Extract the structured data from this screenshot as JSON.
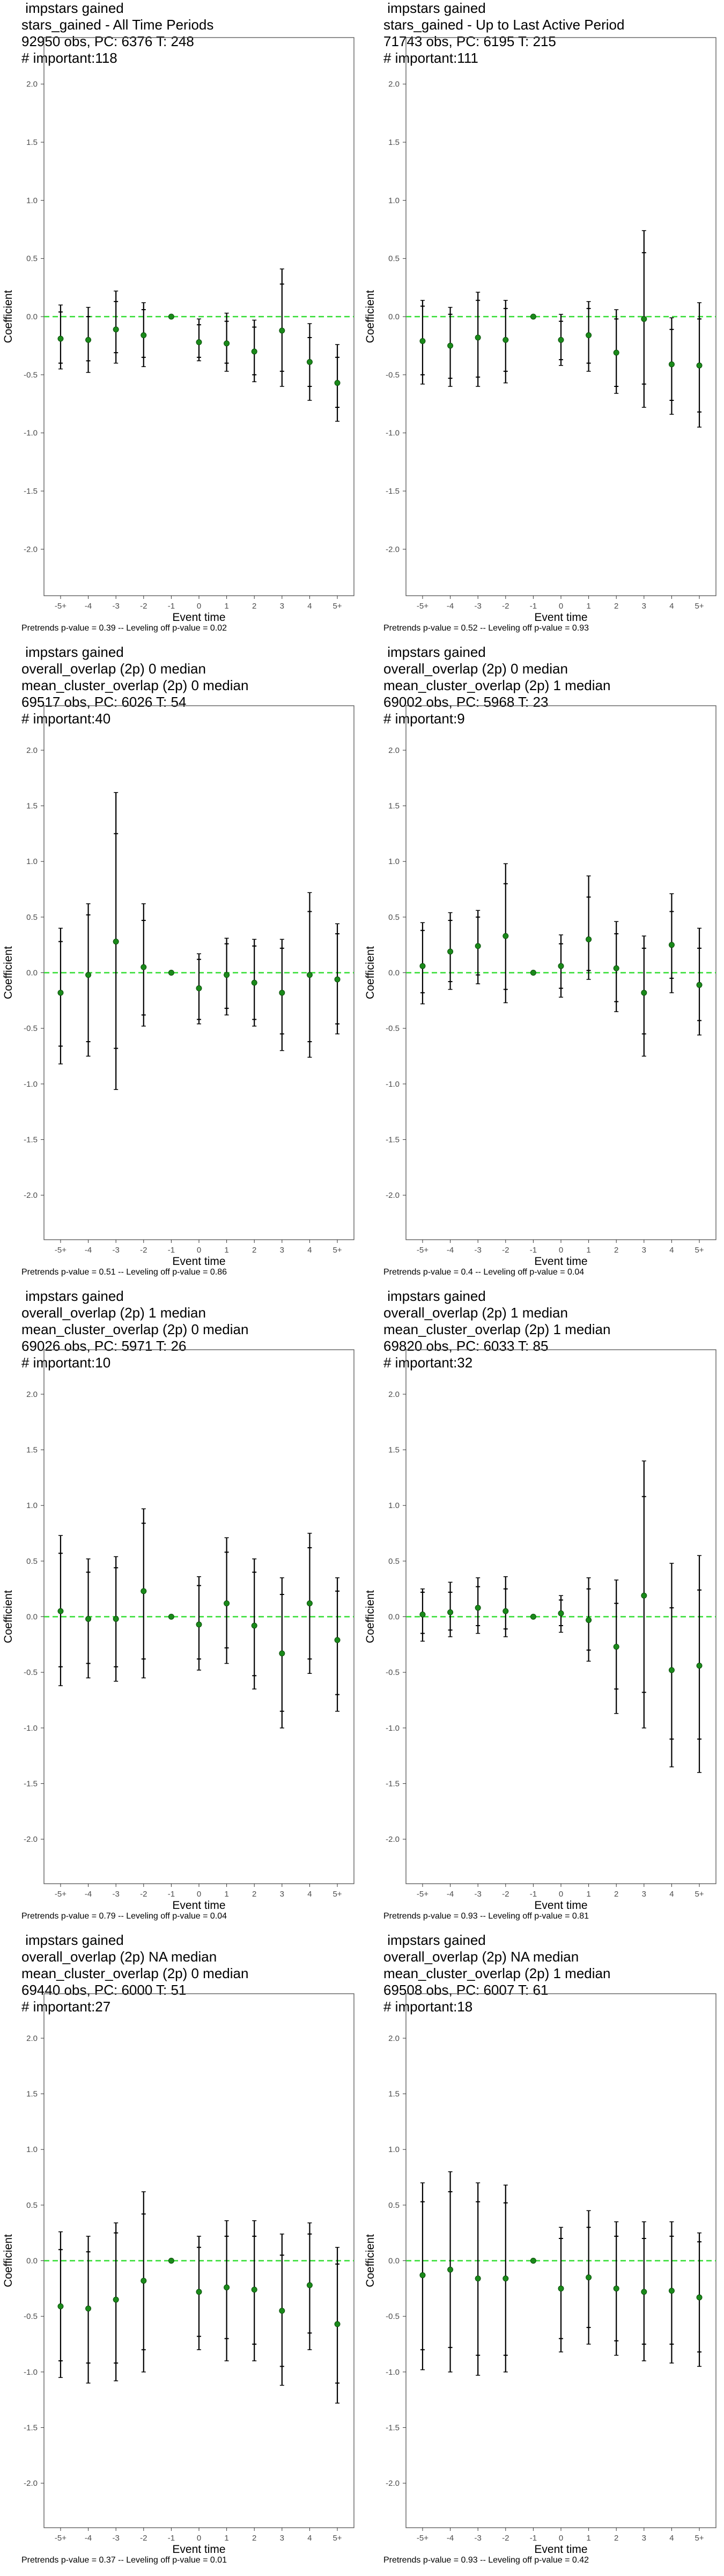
{
  "colors": {
    "point": "#1a8a1a",
    "zero_line": "#33dd33",
    "error_bar": "#000000",
    "frame": "#555555"
  },
  "chart_data": [
    {
      "type": "scatter",
      "title_lines": [
        " impstars gained",
        "stars_gained - All Time Periods",
        "92950 obs, PC: 6376 T: 248",
        "# important:118"
      ],
      "footer": "Pretrends p-value = 0.39 -- Leveling off p-value = 0.02",
      "xlabel": "Event time",
      "ylabel": "Coefficient",
      "categories": [
        "-5+",
        "-4",
        "-3",
        "-2",
        "-1",
        "0",
        "1",
        "2",
        "3",
        "4",
        "5+"
      ],
      "yticks": [
        "2.0",
        "1.5",
        "1.0",
        "0.5",
        "0.0",
        "-0.5",
        "-1.0",
        "-1.5",
        "-2.0"
      ],
      "ylim": [
        -2.4,
        2.4
      ],
      "values": [
        -0.19,
        -0.2,
        -0.11,
        -0.16,
        0.0,
        -0.22,
        -0.23,
        -0.3,
        -0.12,
        -0.39,
        -0.57
      ],
      "ci_inner": [
        [
          -0.4,
          0.04
        ],
        [
          -0.38,
          0.0
        ],
        [
          -0.31,
          0.13
        ],
        [
          -0.35,
          0.06
        ],
        null,
        [
          -0.35,
          -0.07
        ],
        [
          -0.4,
          -0.04
        ],
        [
          -0.5,
          -0.09
        ],
        [
          -0.47,
          0.28
        ],
        [
          -0.6,
          -0.18
        ],
        [
          -0.78,
          -0.35
        ]
      ],
      "ci_outer": [
        [
          -0.45,
          0.1
        ],
        [
          -0.48,
          0.08
        ],
        [
          -0.4,
          0.22
        ],
        [
          -0.43,
          0.12
        ],
        null,
        [
          -0.38,
          -0.02
        ],
        [
          -0.47,
          0.03
        ],
        [
          -0.56,
          -0.03
        ],
        [
          -0.6,
          0.41
        ],
        [
          -0.72,
          -0.06
        ],
        [
          -0.9,
          -0.24
        ]
      ]
    },
    {
      "type": "scatter",
      "title_lines": [
        " impstars gained",
        "stars_gained - Up to Last Active Period",
        "71743 obs, PC: 6195 T: 215",
        "# important:111"
      ],
      "footer": "Pretrends p-value = 0.52 -- Leveling off p-value = 0.93",
      "xlabel": "Event time",
      "ylabel": "Coefficient",
      "categories": [
        "-5+",
        "-4",
        "-3",
        "-2",
        "-1",
        "0",
        "1",
        "2",
        "3",
        "4",
        "5+"
      ],
      "yticks": [
        "2.0",
        "1.5",
        "1.0",
        "0.5",
        "0.0",
        "-0.5",
        "-1.0",
        "-1.5",
        "-2.0"
      ],
      "ylim": [
        -2.4,
        2.4
      ],
      "values": [
        -0.21,
        -0.25,
        -0.18,
        -0.2,
        0.0,
        -0.2,
        -0.16,
        -0.31,
        -0.02,
        -0.41,
        -0.42
      ],
      "ci_inner": [
        [
          -0.5,
          0.09
        ],
        [
          -0.53,
          0.02
        ],
        [
          -0.52,
          0.14
        ],
        [
          -0.47,
          0.07
        ],
        null,
        [
          -0.37,
          -0.04
        ],
        [
          -0.4,
          0.07
        ],
        [
          -0.6,
          -0.02
        ],
        [
          -0.58,
          0.55
        ],
        [
          -0.72,
          -0.11
        ],
        [
          -0.82,
          -0.02
        ]
      ],
      "ci_outer": [
        [
          -0.58,
          0.14
        ],
        [
          -0.6,
          0.08
        ],
        [
          -0.6,
          0.21
        ],
        [
          -0.57,
          0.14
        ],
        null,
        [
          -0.42,
          0.02
        ],
        [
          -0.47,
          0.13
        ],
        [
          -0.66,
          0.06
        ],
        [
          -0.78,
          0.74
        ],
        [
          -0.84,
          -0.01
        ],
        [
          -0.95,
          0.12
        ]
      ]
    },
    {
      "type": "scatter",
      "title_lines": [
        " impstars gained",
        "overall_overlap (2p) 0 median",
        "mean_cluster_overlap (2p) 0 median",
        "69517 obs, PC: 6026 T: 54",
        "# important:40"
      ],
      "footer": "Pretrends p-value = 0.51 -- Leveling off p-value = 0.86",
      "xlabel": "Event time",
      "ylabel": "Coefficient",
      "categories": [
        "-5+",
        "-4",
        "-3",
        "-2",
        "-1",
        "0",
        "1",
        "2",
        "3",
        "4",
        "5+"
      ],
      "yticks": [
        "2.0",
        "1.5",
        "1.0",
        "0.5",
        "0.0",
        "-0.5",
        "-1.0",
        "-1.5",
        "-2.0"
      ],
      "ylim": [
        -2.4,
        2.4
      ],
      "values": [
        -0.18,
        -0.02,
        0.28,
        0.05,
        0.0,
        -0.14,
        -0.02,
        -0.09,
        -0.18,
        -0.02,
        -0.06
      ],
      "ci_inner": [
        [
          -0.66,
          0.28
        ],
        [
          -0.62,
          0.52
        ],
        [
          -0.68,
          1.25
        ],
        [
          -0.38,
          0.47
        ],
        null,
        [
          -0.42,
          0.12
        ],
        [
          -0.32,
          0.26
        ],
        [
          -0.42,
          0.24
        ],
        [
          -0.55,
          0.22
        ],
        [
          -0.62,
          0.55
        ],
        [
          -0.46,
          0.35
        ]
      ],
      "ci_outer": [
        [
          -0.82,
          0.4
        ],
        [
          -0.75,
          0.62
        ],
        [
          -1.05,
          1.62
        ],
        [
          -0.48,
          0.62
        ],
        null,
        [
          -0.46,
          0.17
        ],
        [
          -0.38,
          0.31
        ],
        [
          -0.48,
          0.3
        ],
        [
          -0.7,
          0.3
        ],
        [
          -0.76,
          0.72
        ],
        [
          -0.55,
          0.44
        ]
      ]
    },
    {
      "type": "scatter",
      "title_lines": [
        " impstars gained",
        "overall_overlap (2p) 0 median",
        "mean_cluster_overlap (2p) 1 median",
        "69002 obs, PC: 5968 T: 23",
        "# important:9"
      ],
      "footer": "Pretrends p-value = 0.4 -- Leveling off p-value = 0.04",
      "xlabel": "Event time",
      "ylabel": "Coefficient",
      "categories": [
        "-5+",
        "-4",
        "-3",
        "-2",
        "-1",
        "0",
        "1",
        "2",
        "3",
        "4",
        "5+"
      ],
      "yticks": [
        "2.0",
        "1.5",
        "1.0",
        "0.5",
        "0.0",
        "-0.5",
        "-1.0",
        "-1.5",
        "-2.0"
      ],
      "ylim": [
        -2.4,
        2.4
      ],
      "values": [
        0.06,
        0.19,
        0.24,
        0.33,
        0.0,
        0.06,
        0.3,
        0.04,
        -0.18,
        0.25,
        -0.11
      ],
      "ci_inner": [
        [
          -0.18,
          0.38
        ],
        [
          -0.08,
          0.47
        ],
        [
          -0.02,
          0.5
        ],
        [
          -0.15,
          0.8
        ],
        null,
        [
          -0.14,
          0.26
        ],
        [
          0.02,
          0.68
        ],
        [
          -0.26,
          0.35
        ],
        [
          -0.55,
          0.22
        ],
        [
          -0.05,
          0.55
        ],
        [
          -0.43,
          0.22
        ]
      ],
      "ci_outer": [
        [
          -0.28,
          0.45
        ],
        [
          -0.15,
          0.54
        ],
        [
          -0.1,
          0.56
        ],
        [
          -0.27,
          0.98
        ],
        null,
        [
          -0.22,
          0.34
        ],
        [
          -0.06,
          0.87
        ],
        [
          -0.35,
          0.46
        ],
        [
          -0.75,
          0.33
        ],
        [
          -0.18,
          0.71
        ],
        [
          -0.56,
          0.4
        ]
      ]
    },
    {
      "type": "scatter",
      "title_lines": [
        " impstars gained",
        "overall_overlap (2p) 1 median",
        "mean_cluster_overlap (2p) 0 median",
        "69026 obs, PC: 5971 T: 26",
        "# important:10"
      ],
      "footer": "Pretrends p-value = 0.79 -- Leveling off p-value = 0.04",
      "xlabel": "Event time",
      "ylabel": "Coefficient",
      "categories": [
        "-5+",
        "-4",
        "-3",
        "-2",
        "-1",
        "0",
        "1",
        "2",
        "3",
        "4",
        "5+"
      ],
      "yticks": [
        "2.0",
        "1.5",
        "1.0",
        "0.5",
        "0.0",
        "-0.5",
        "-1.0",
        "-1.5",
        "-2.0"
      ],
      "ylim": [
        -2.4,
        2.4
      ],
      "values": [
        0.05,
        -0.02,
        -0.02,
        0.23,
        0.0,
        -0.07,
        0.12,
        -0.08,
        -0.33,
        0.12,
        -0.21
      ],
      "ci_inner": [
        [
          -0.45,
          0.57
        ],
        [
          -0.42,
          0.4
        ],
        [
          -0.45,
          0.44
        ],
        [
          -0.38,
          0.84
        ],
        null,
        [
          -0.38,
          0.28
        ],
        [
          -0.28,
          0.58
        ],
        [
          -0.53,
          0.4
        ],
        [
          -0.85,
          0.2
        ],
        [
          -0.38,
          0.62
        ],
        [
          -0.7,
          0.23
        ]
      ],
      "ci_outer": [
        [
          -0.62,
          0.73
        ],
        [
          -0.55,
          0.52
        ],
        [
          -0.58,
          0.54
        ],
        [
          -0.55,
          0.97
        ],
        null,
        [
          -0.48,
          0.36
        ],
        [
          -0.42,
          0.71
        ],
        [
          -0.65,
          0.52
        ],
        [
          -1.0,
          0.35
        ],
        [
          -0.51,
          0.75
        ],
        [
          -0.85,
          0.35
        ]
      ]
    },
    {
      "type": "scatter",
      "title_lines": [
        " impstars gained",
        "overall_overlap (2p) 1 median",
        "mean_cluster_overlap (2p) 1 median",
        "69820 obs, PC: 6033 T: 85",
        "# important:32"
      ],
      "footer": "Pretrends p-value = 0.93 -- Leveling off p-value = 0.81",
      "xlabel": "Event time",
      "ylabel": "Coefficient",
      "categories": [
        "-5+",
        "-4",
        "-3",
        "-2",
        "-1",
        "0",
        "1",
        "2",
        "3",
        "4",
        "5+"
      ],
      "yticks": [
        "2.0",
        "1.5",
        "1.0",
        "0.5",
        "0.0",
        "-0.5",
        "-1.0",
        "-1.5",
        "-2.0"
      ],
      "ylim": [
        -2.4,
        2.4
      ],
      "values": [
        0.02,
        0.04,
        0.08,
        0.05,
        0.0,
        0.03,
        -0.03,
        -0.27,
        0.19,
        -0.48,
        -0.44
      ],
      "ci_inner": [
        [
          -0.15,
          0.22
        ],
        [
          -0.12,
          0.22
        ],
        [
          -0.08,
          0.27
        ],
        [
          -0.11,
          0.25
        ],
        null,
        [
          -0.08,
          0.15
        ],
        [
          -0.3,
          0.25
        ],
        [
          -0.65,
          0.12
        ],
        [
          -0.68,
          1.08
        ],
        [
          -1.1,
          0.08
        ],
        [
          -1.1,
          0.24
        ]
      ],
      "ci_outer": [
        [
          -0.22,
          0.25
        ],
        [
          -0.18,
          0.31
        ],
        [
          -0.15,
          0.35
        ],
        [
          -0.18,
          0.36
        ],
        null,
        [
          -0.14,
          0.19
        ],
        [
          -0.4,
          0.35
        ],
        [
          -0.87,
          0.33
        ],
        [
          -1.0,
          1.4
        ],
        [
          -1.35,
          0.48
        ],
        [
          -1.4,
          0.55
        ]
      ]
    },
    {
      "type": "scatter",
      "title_lines": [
        " impstars gained",
        "overall_overlap (2p) NA median",
        "mean_cluster_overlap (2p) 0 median",
        "69440 obs, PC: 6000 T: 51",
        "# important:27"
      ],
      "footer": "Pretrends p-value = 0.37 -- Leveling off p-value = 0.01",
      "xlabel": "Event time",
      "ylabel": "Coefficient",
      "categories": [
        "-5+",
        "-4",
        "-3",
        "-2",
        "-1",
        "0",
        "1",
        "2",
        "3",
        "4",
        "5+"
      ],
      "yticks": [
        "2.0",
        "1.5",
        "1.0",
        "0.5",
        "0.0",
        "-0.5",
        "-1.0",
        "-1.5",
        "-2.0"
      ],
      "ylim": [
        -2.4,
        2.4
      ],
      "values": [
        -0.41,
        -0.43,
        -0.35,
        -0.18,
        0.0,
        -0.28,
        -0.24,
        -0.26,
        -0.45,
        -0.22,
        -0.57
      ],
      "ci_inner": [
        [
          -0.9,
          0.1
        ],
        [
          -0.92,
          0.08
        ],
        [
          -0.92,
          0.25
        ],
        [
          -0.8,
          0.42
        ],
        null,
        [
          -0.68,
          0.12
        ],
        [
          -0.7,
          0.22
        ],
        [
          -0.75,
          0.22
        ],
        [
          -0.95,
          0.05
        ],
        [
          -0.65,
          0.24
        ],
        [
          -1.1,
          -0.03
        ]
      ],
      "ci_outer": [
        [
          -1.05,
          0.26
        ],
        [
          -1.1,
          0.22
        ],
        [
          -1.08,
          0.34
        ],
        [
          -1.0,
          0.62
        ],
        null,
        [
          -0.8,
          0.22
        ],
        [
          -0.9,
          0.36
        ],
        [
          -0.9,
          0.36
        ],
        [
          -1.12,
          0.24
        ],
        [
          -0.8,
          0.34
        ],
        [
          -1.28,
          0.12
        ]
      ]
    },
    {
      "type": "scatter",
      "title_lines": [
        " impstars gained",
        "overall_overlap (2p) NA median",
        "mean_cluster_overlap (2p) 1 median",
        "69508 obs, PC: 6007 T: 61",
        "# important:18"
      ],
      "footer": "Pretrends p-value = 0.93 -- Leveling off p-value = 0.42",
      "xlabel": "Event time",
      "ylabel": "Coefficient",
      "categories": [
        "-5+",
        "-4",
        "-3",
        "-2",
        "-1",
        "0",
        "1",
        "2",
        "3",
        "4",
        "5+"
      ],
      "yticks": [
        "2.0",
        "1.5",
        "1.0",
        "0.5",
        "0.0",
        "-0.5",
        "-1.0",
        "-1.5",
        "-2.0"
      ],
      "ylim": [
        -2.4,
        2.4
      ],
      "values": [
        -0.13,
        -0.08,
        -0.16,
        -0.16,
        0.0,
        -0.25,
        -0.15,
        -0.25,
        -0.28,
        -0.27,
        -0.33
      ],
      "ci_inner": [
        [
          -0.8,
          0.53
        ],
        [
          -0.78,
          0.62
        ],
        [
          -0.85,
          0.53
        ],
        [
          -0.85,
          0.52
        ],
        null,
        [
          -0.7,
          0.2
        ],
        [
          -0.6,
          0.3
        ],
        [
          -0.72,
          0.22
        ],
        [
          -0.75,
          0.2
        ],
        [
          -0.75,
          0.22
        ],
        [
          -0.82,
          0.17
        ]
      ],
      "ci_outer": [
        [
          -0.98,
          0.7
        ],
        [
          -1.0,
          0.8
        ],
        [
          -1.03,
          0.7
        ],
        [
          -1.0,
          0.68
        ],
        null,
        [
          -0.82,
          0.3
        ],
        [
          -0.75,
          0.45
        ],
        [
          -0.85,
          0.35
        ],
        [
          -0.9,
          0.35
        ],
        [
          -0.92,
          0.35
        ],
        [
          -0.95,
          0.25
        ]
      ]
    }
  ]
}
